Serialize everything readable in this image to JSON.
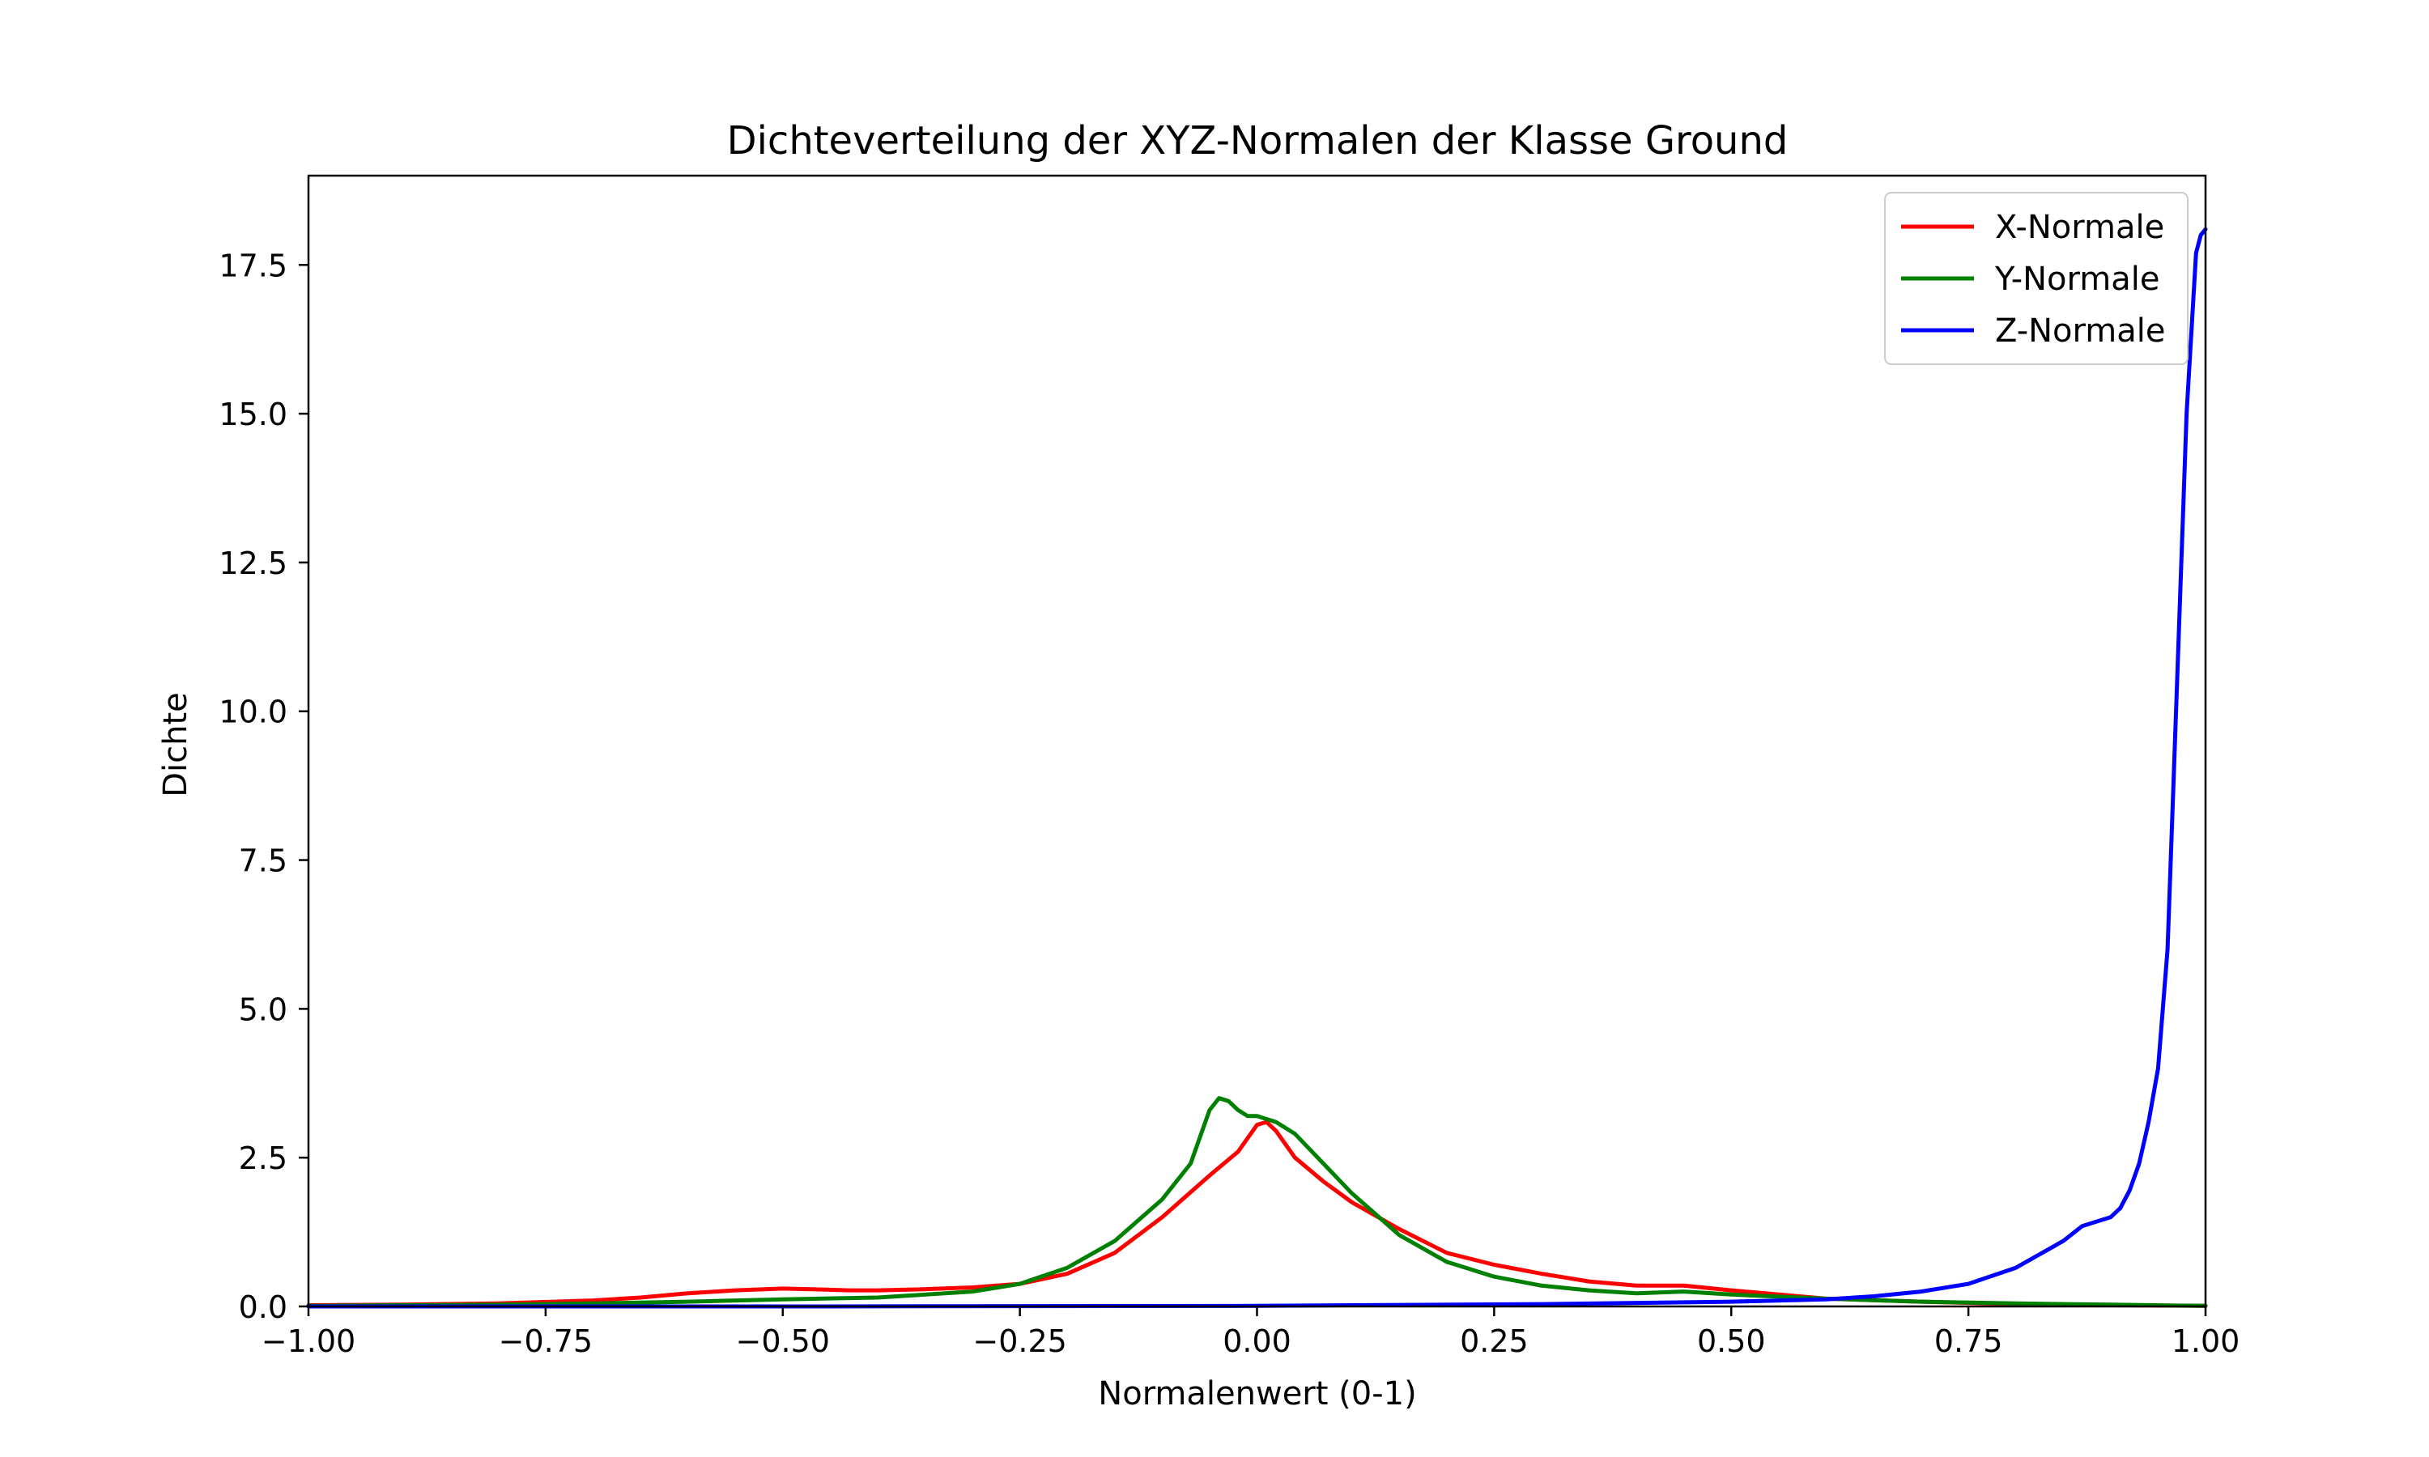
{
  "chart_data": {
    "type": "line",
    "title": "Dichteverteilung der XYZ-Normalen der Klasse Ground",
    "xlabel": "Normalenwert (0-1)",
    "ylabel": "Dichte",
    "xlim": [
      -1.0,
      1.0
    ],
    "ylim": [
      0,
      19
    ],
    "xticks": [
      -1.0,
      -0.75,
      -0.5,
      -0.25,
      0.0,
      0.25,
      0.5,
      0.75,
      1.0
    ],
    "xtick_labels": [
      "−1.00",
      "−0.75",
      "−0.50",
      "−0.25",
      "0.00",
      "0.25",
      "0.50",
      "0.75",
      "1.00"
    ],
    "yticks": [
      0,
      2.5,
      5.0,
      7.5,
      10.0,
      12.5,
      15.0,
      17.5
    ],
    "ytick_labels": [
      "0.0",
      "2.5",
      "5.0",
      "7.5",
      "10.0",
      "12.5",
      "15.0",
      "17.5"
    ],
    "grid": false,
    "legend_position": "top-right",
    "series": [
      {
        "name": "X-Normale",
        "color": "#ff0000",
        "x": [
          -1.0,
          -0.9,
          -0.8,
          -0.7,
          -0.65,
          -0.6,
          -0.55,
          -0.5,
          -0.47,
          -0.43,
          -0.4,
          -0.35,
          -0.3,
          -0.25,
          -0.2,
          -0.15,
          -0.1,
          -0.05,
          -0.02,
          0.0,
          0.01,
          0.02,
          0.04,
          0.07,
          0.1,
          0.15,
          0.2,
          0.25,
          0.3,
          0.35,
          0.4,
          0.45,
          0.5,
          0.55,
          0.6,
          0.7,
          0.8,
          0.9,
          1.0
        ],
        "y": [
          0.02,
          0.03,
          0.05,
          0.1,
          0.15,
          0.22,
          0.27,
          0.3,
          0.29,
          0.27,
          0.27,
          0.29,
          0.32,
          0.38,
          0.55,
          0.9,
          1.5,
          2.2,
          2.6,
          3.05,
          3.1,
          2.95,
          2.5,
          2.1,
          1.75,
          1.3,
          0.9,
          0.7,
          0.55,
          0.42,
          0.35,
          0.35,
          0.27,
          0.2,
          0.13,
          0.08,
          0.04,
          0.02,
          0.01
        ]
      },
      {
        "name": "Y-Normale",
        "color": "#008000",
        "x": [
          -1.0,
          -0.9,
          -0.8,
          -0.7,
          -0.6,
          -0.5,
          -0.4,
          -0.3,
          -0.25,
          -0.2,
          -0.15,
          -0.1,
          -0.07,
          -0.05,
          -0.04,
          -0.03,
          -0.02,
          -0.01,
          0.0,
          0.02,
          0.04,
          0.07,
          0.1,
          0.15,
          0.2,
          0.25,
          0.3,
          0.35,
          0.4,
          0.45,
          0.5,
          0.6,
          0.7,
          0.8,
          0.9,
          1.0
        ],
        "y": [
          0.01,
          0.02,
          0.03,
          0.05,
          0.08,
          0.12,
          0.15,
          0.25,
          0.38,
          0.65,
          1.1,
          1.8,
          2.4,
          3.3,
          3.5,
          3.45,
          3.3,
          3.2,
          3.2,
          3.1,
          2.9,
          2.4,
          1.9,
          1.2,
          0.75,
          0.5,
          0.35,
          0.27,
          0.22,
          0.25,
          0.2,
          0.13,
          0.08,
          0.05,
          0.03,
          0.01
        ]
      },
      {
        "name": "Z-Normale",
        "color": "#0000ff",
        "x": [
          -1.0,
          -0.5,
          0.0,
          0.3,
          0.5,
          0.6,
          0.65,
          0.7,
          0.75,
          0.8,
          0.85,
          0.87,
          0.89,
          0.9,
          0.91,
          0.92,
          0.93,
          0.94,
          0.95,
          0.96,
          0.97,
          0.98,
          0.99,
          0.995,
          1.0
        ],
        "y": [
          0.0,
          0.0,
          0.01,
          0.04,
          0.08,
          0.12,
          0.17,
          0.25,
          0.38,
          0.65,
          1.1,
          1.35,
          1.45,
          1.5,
          1.65,
          1.95,
          2.4,
          3.1,
          4.0,
          6.0,
          10.5,
          15.0,
          17.7,
          18.0,
          18.1
        ]
      }
    ]
  }
}
